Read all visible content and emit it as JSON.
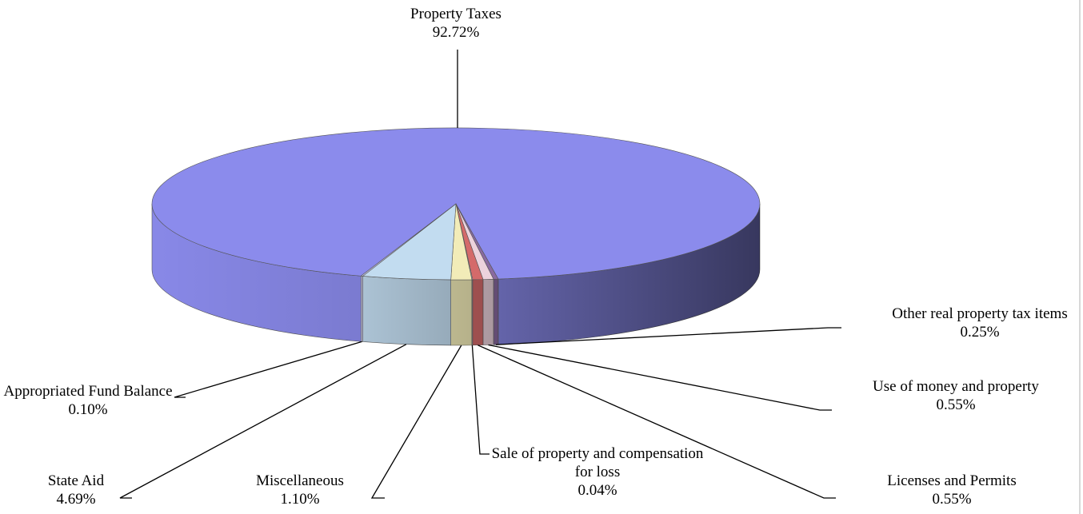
{
  "chart_data": {
    "type": "pie",
    "categories": [
      "Property Taxes",
      "Other real property tax items",
      "Use of money and property",
      "Licenses and Permits",
      "Sale of property and compensation for loss",
      "Miscellaneous",
      "State Aid",
      "Appropriated Fund Balance"
    ],
    "values": [
      92.72,
      0.25,
      0.55,
      0.55,
      0.04,
      1.1,
      4.69,
      0.1
    ],
    "value_labels": [
      "92.72%",
      "0.25%",
      "0.55%",
      "0.55%",
      "0.04%",
      "1.10%",
      "4.69%",
      "0.10%"
    ],
    "colors": [
      "#8b8bec",
      "#8a6aa0",
      "#ecd2dc",
      "#d46a6a",
      "#d8d8f0",
      "#f2ecb8",
      "#c2dcf0",
      "#cacaec"
    ]
  }
}
